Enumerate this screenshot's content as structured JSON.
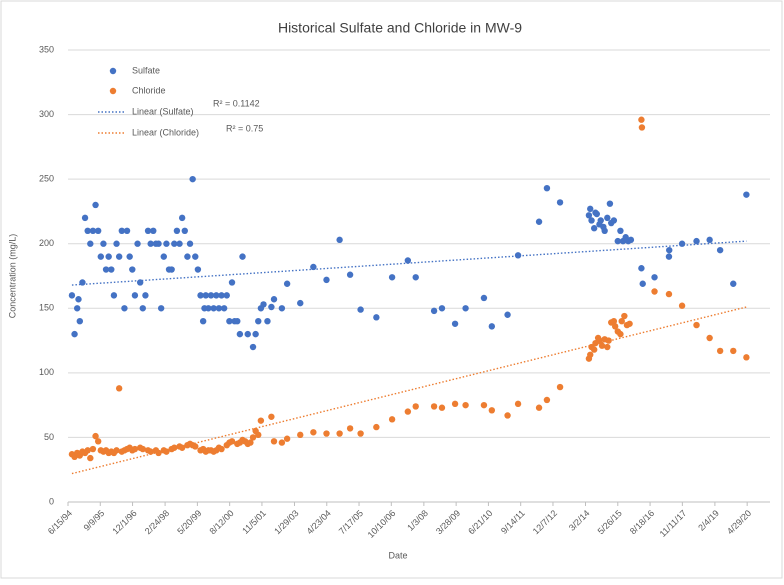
{
  "chart_data": {
    "type": "scatter",
    "title": "Historical Sulfate and Chloride in MW-9",
    "x_label": "Date",
    "y_label": "Concentration (mg/L)",
    "xlim": [
      1994.45,
      2021.2
    ],
    "ylim": [
      0,
      350
    ],
    "yticks": [
      0,
      50,
      100,
      150,
      200,
      250,
      300,
      350
    ],
    "xticks": [
      {
        "value": 1994.45,
        "label": "6/15/94"
      },
      {
        "value": 1995.68,
        "label": "9/9/95"
      },
      {
        "value": 1996.91,
        "label": "12/1/96"
      },
      {
        "value": 1998.15,
        "label": "2/24/98"
      },
      {
        "value": 1999.38,
        "label": "5/20/99"
      },
      {
        "value": 2000.61,
        "label": "8/12/00"
      },
      {
        "value": 2001.84,
        "label": "11/5/01"
      },
      {
        "value": 2003.08,
        "label": "1/29/03"
      },
      {
        "value": 2004.31,
        "label": "4/23/04"
      },
      {
        "value": 2005.54,
        "label": "7/17/05"
      },
      {
        "value": 2006.77,
        "label": "10/10/06"
      },
      {
        "value": 2008.01,
        "label": "1/3/08"
      },
      {
        "value": 2009.24,
        "label": "3/28/09"
      },
      {
        "value": 2010.47,
        "label": "6/21/10"
      },
      {
        "value": 2011.7,
        "label": "9/14/11"
      },
      {
        "value": 2012.93,
        "label": "12/7/12"
      },
      {
        "value": 2014.17,
        "label": "3/2/14"
      },
      {
        "value": 2015.4,
        "label": "5/26/15"
      },
      {
        "value": 2016.63,
        "label": "8/18/16"
      },
      {
        "value": 2017.86,
        "label": "11/11/17"
      },
      {
        "value": 2019.1,
        "label": "2/4/19"
      },
      {
        "value": 2020.33,
        "label": "4/29/20"
      }
    ],
    "grid": true,
    "legend": "top-left",
    "series": [
      {
        "name": "Sulfate",
        "color": "#4472c4",
        "x": [
          1994.6,
          1994.7,
          1994.8,
          1994.85,
          1994.9,
          1995.0,
          1995.1,
          1995.2,
          1995.3,
          1995.4,
          1995.5,
          1995.6,
          1995.7,
          1995.8,
          1995.9,
          1996.0,
          1996.1,
          1996.2,
          1996.3,
          1996.4,
          1996.5,
          1996.6,
          1996.7,
          1996.8,
          1996.9,
          1997.0,
          1997.1,
          1997.2,
          1997.3,
          1997.4,
          1997.5,
          1997.6,
          1997.7,
          1997.8,
          1997.9,
          1998.0,
          1998.1,
          1998.2,
          1998.3,
          1998.4,
          1998.5,
          1998.6,
          1998.7,
          1998.8,
          1998.9,
          1999.0,
          1999.1,
          1999.2,
          1999.3,
          1999.4,
          1999.5,
          1999.6,
          1999.65,
          1999.7,
          1999.8,
          1999.9,
          2000.0,
          2000.1,
          2000.2,
          2000.3,
          2000.4,
          2000.5,
          2000.6,
          2000.7,
          2000.8,
          2000.9,
          2001.0,
          2001.1,
          2001.3,
          2001.5,
          2001.6,
          2001.7,
          2001.8,
          2001.9,
          2002.05,
          2002.2,
          2002.3,
          2002.6,
          2002.8,
          2003.3,
          2003.8,
          2004.3,
          2004.8,
          2005.2,
          2005.6,
          2006.2,
          2006.8,
          2007.4,
          2007.7,
          2008.4,
          2008.7,
          2009.2,
          2009.6,
          2010.3,
          2010.6,
          2011.2,
          2011.6,
          2012.4,
          2012.7,
          2013.2,
          2014.3,
          2014.35,
          2014.4,
          2014.5,
          2014.55,
          2014.6,
          2014.7,
          2014.75,
          2014.85,
          2014.9,
          2015.0,
          2015.1,
          2015.15,
          2015.25,
          2015.4,
          2015.5,
          2015.6,
          2015.7,
          2015.8,
          2015.9,
          2016.3,
          2016.35,
          2016.8,
          2017.35,
          2017.36,
          2017.85,
          2018.4,
          2018.9,
          2019.3,
          2019.8,
          2020.3
        ],
        "values": [
          160,
          130,
          150,
          157,
          140,
          170,
          220,
          210,
          200,
          210,
          230,
          210,
          190,
          200,
          180,
          190,
          180,
          160,
          200,
          190,
          210,
          150,
          210,
          190,
          180,
          160,
          200,
          170,
          150,
          160,
          210,
          200,
          210,
          200,
          200,
          150,
          190,
          200,
          180,
          180,
          200,
          210,
          200,
          220,
          210,
          190,
          200,
          250,
          190,
          180,
          160,
          140,
          150,
          160,
          150,
          160,
          150,
          160,
          150,
          160,
          150,
          160,
          140,
          170,
          140,
          140,
          130,
          190,
          130,
          120,
          130,
          140,
          150,
          153,
          140,
          151,
          157,
          150,
          169,
          154,
          182,
          172,
          203,
          176,
          149,
          143,
          174,
          187,
          174,
          148,
          150,
          138,
          150,
          158,
          136,
          145,
          191,
          217,
          243,
          232,
          222,
          227,
          218,
          212,
          224,
          223,
          215,
          218,
          213,
          210,
          220,
          231,
          216,
          218,
          202,
          210,
          202,
          205,
          202,
          203,
          181,
          169,
          174,
          190,
          195,
          200,
          202,
          203,
          195,
          169,
          238
        ]
      },
      {
        "name": "Chloride",
        "color": "#ed7d31",
        "x": [
          1994.6,
          1994.7,
          1994.8,
          1994.9,
          1995.0,
          1995.1,
          1995.2,
          1995.3,
          1995.4,
          1995.5,
          1995.6,
          1995.7,
          1995.8,
          1995.9,
          1996.0,
          1996.1,
          1996.2,
          1996.3,
          1996.4,
          1996.5,
          1996.6,
          1996.7,
          1996.8,
          1996.9,
          1997.0,
          1997.2,
          1997.3,
          1997.5,
          1997.6,
          1997.8,
          1997.9,
          1998.1,
          1998.2,
          1998.4,
          1998.5,
          1998.7,
          1998.8,
          1999.0,
          1999.1,
          1999.2,
          1999.3,
          1999.5,
          1999.6,
          1999.7,
          1999.8,
          1999.9,
          2000.0,
          2000.1,
          2000.2,
          2000.3,
          2000.5,
          2000.6,
          2000.7,
          2000.9,
          2001.0,
          2001.1,
          2001.2,
          2001.3,
          2001.4,
          2001.5,
          2001.6,
          2001.7,
          2001.8,
          2002.2,
          2002.3,
          2002.6,
          2002.8,
          2003.3,
          2003.8,
          2004.3,
          2004.8,
          2005.2,
          2005.6,
          2006.2,
          2006.8,
          2007.4,
          2007.7,
          2008.4,
          2008.7,
          2009.2,
          2009.6,
          2010.3,
          2010.6,
          2011.2,
          2011.6,
          2012.4,
          2012.7,
          2013.2,
          2014.3,
          2014.35,
          2014.4,
          2014.5,
          2014.55,
          2014.65,
          2014.7,
          2014.8,
          2014.9,
          2015.0,
          2015.05,
          2015.15,
          2015.25,
          2015.3,
          2015.4,
          2015.5,
          2015.55,
          2015.65,
          2015.75,
          2015.85,
          2016.3,
          2016.32,
          2016.8,
          2017.35,
          2017.85,
          2018.4,
          2018.9,
          2019.3,
          2019.8,
          2020.3
        ],
        "values": [
          37,
          35,
          38,
          36,
          39,
          38,
          40,
          34,
          41,
          51,
          47,
          40,
          39,
          40,
          38,
          39,
          38,
          40,
          88,
          39,
          40,
          41,
          42,
          40,
          41,
          42,
          41,
          40,
          39,
          40,
          38,
          40,
          39,
          41,
          42,
          43,
          42,
          44,
          45,
          44,
          43,
          40,
          41,
          39,
          40,
          40,
          39,
          40,
          42,
          41,
          44,
          46,
          47,
          45,
          46,
          48,
          47,
          45,
          46,
          50,
          55,
          52,
          63,
          66,
          47,
          46,
          49,
          52,
          54,
          53,
          53,
          57,
          53,
          58,
          64,
          70,
          74,
          74,
          73,
          76,
          75,
          75,
          71,
          67,
          76,
          73,
          79,
          89,
          111,
          114,
          120,
          118,
          123,
          127,
          125,
          121,
          126,
          120,
          125,
          139,
          140,
          136,
          132,
          130,
          140,
          144,
          137,
          138,
          296,
          290,
          163,
          161,
          152,
          137,
          127,
          117,
          117,
          112
        ]
      }
    ],
    "trendlines": [
      {
        "name": "Linear (Sulfate)",
        "color": "#4472c4",
        "x": [
          1994.6,
          2020.3
        ],
        "values": [
          168,
          202
        ],
        "annotation": "R² = 0.1142"
      },
      {
        "name": "Linear (Chloride)",
        "color": "#ed7d31",
        "x": [
          1994.6,
          2020.3
        ],
        "values": [
          22,
          151
        ],
        "annotation": "R² = 0.75"
      }
    ]
  }
}
